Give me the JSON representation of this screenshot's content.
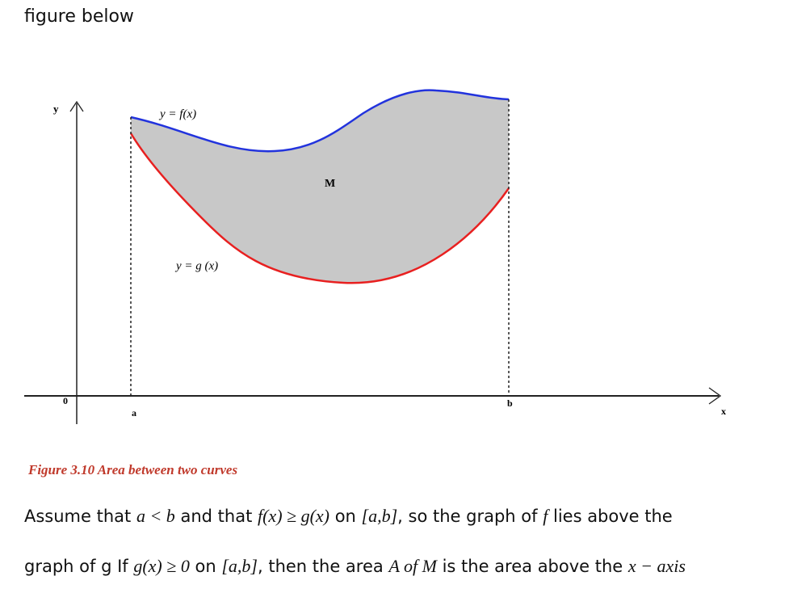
{
  "intro": "figure below",
  "figure": {
    "labels": {
      "y_axis": "y",
      "f_curve": "y = f(x)",
      "region": "M",
      "g_curve": "y = g (x)",
      "origin": "0",
      "a": "a",
      "b": "b",
      "x_axis": "x"
    }
  },
  "caption": "Figure 3.10 Area between two curves",
  "paragraph": {
    "lines": [
      [
        "Assume that ",
        "a < b",
        " and that ",
        "f(x) ≥ g(x)",
        " on ",
        "[a,b]",
        ", so the graph of ",
        "f",
        " lies above the"
      ],
      [
        "graph of g If ",
        "g(x) ≥ 0",
        " on ",
        "[a,b]",
        ", then the area ",
        "A of M",
        " is the area above the ",
        "x − axis"
      ]
    ]
  }
}
